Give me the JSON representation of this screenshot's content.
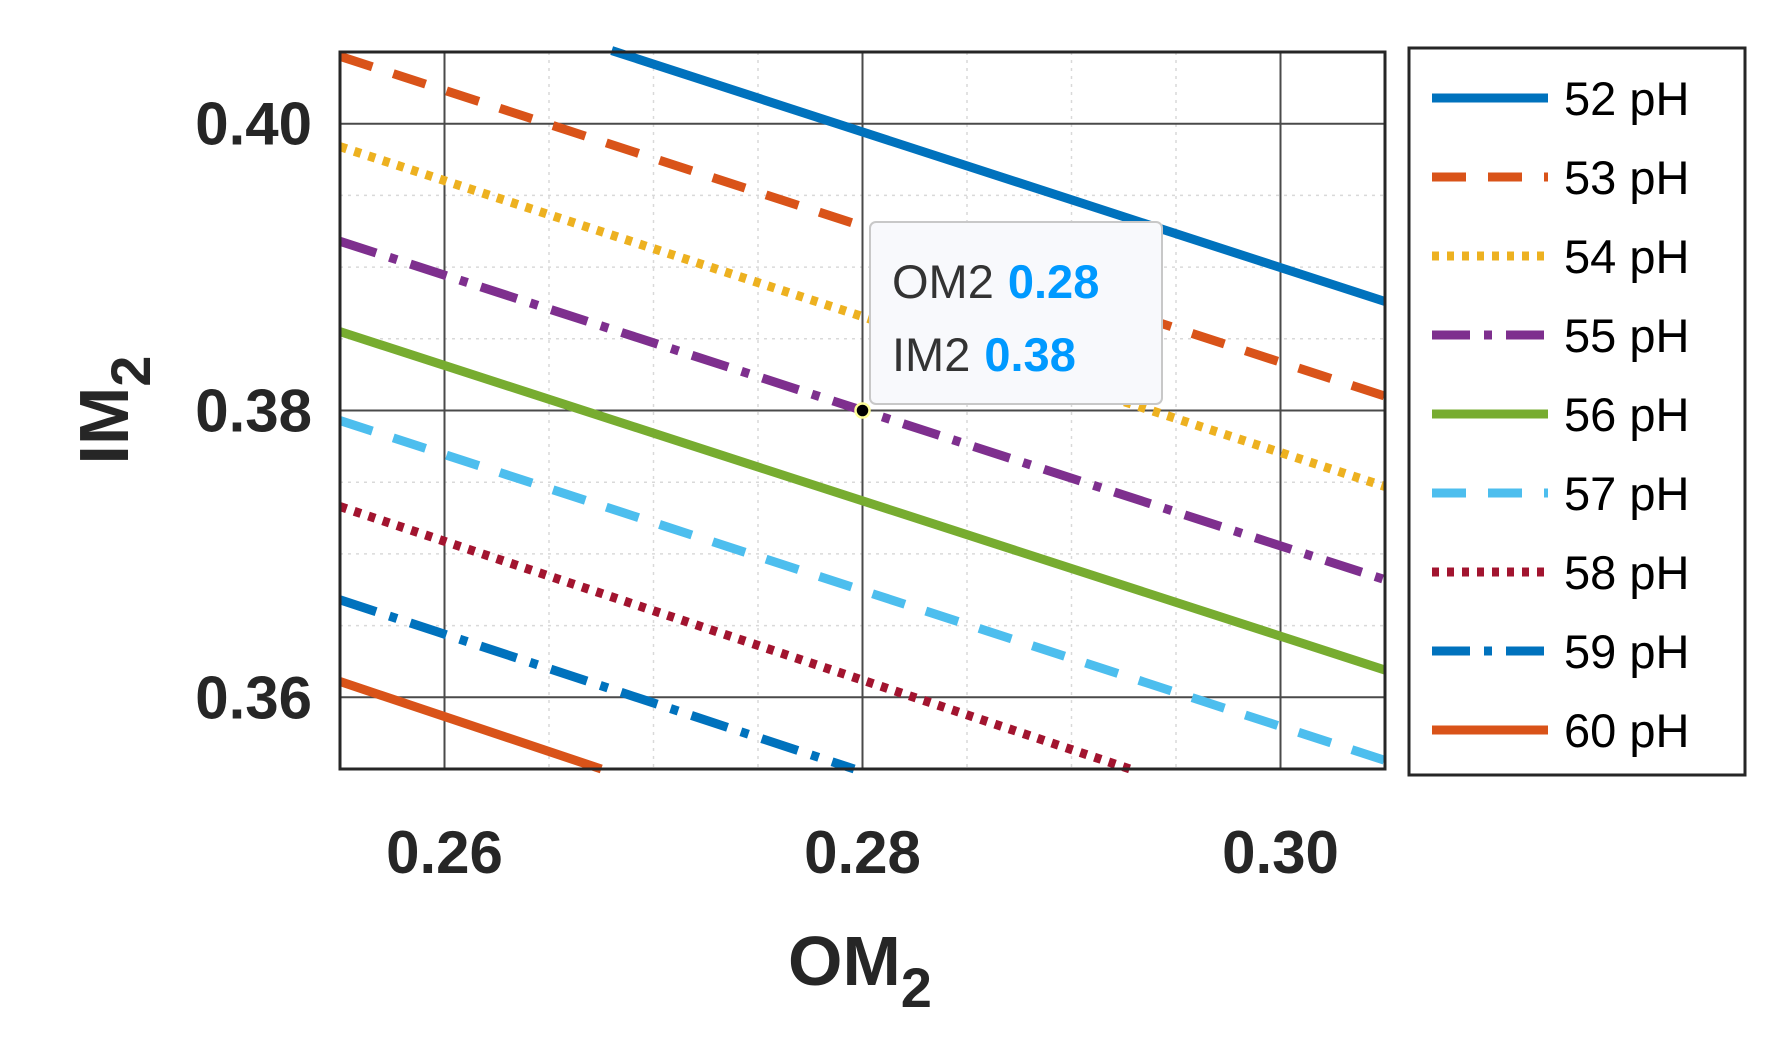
{
  "chart_data": {
    "type": "line",
    "xlabel": "OM",
    "xlabel_sub": "2",
    "ylabel": "IM",
    "ylabel_sub": "2",
    "xlim": [
      0.255,
      0.305
    ],
    "ylim": [
      0.355,
      0.405
    ],
    "xticks": [
      0.26,
      0.28,
      0.3
    ],
    "xtick_labels": [
      "0.26",
      "0.28",
      "0.30"
    ],
    "yticks": [
      0.36,
      0.38,
      0.4
    ],
    "ytick_labels": [
      "0.36",
      "0.38",
      "0.40"
    ],
    "grid": true,
    "minor_grid": true,
    "legend_position": "outside-right",
    "series": [
      {
        "name": "52 pH",
        "color": "#0072BD",
        "style": "solid",
        "x": [
          0.268,
          0.305
        ],
        "y": [
          0.4051,
          0.3876
        ]
      },
      {
        "name": "53 pH",
        "color": "#D95319",
        "style": "dashed",
        "x": [
          0.255,
          0.305
        ],
        "y": [
          0.4047,
          0.381
        ]
      },
      {
        "name": "54 pH",
        "color": "#EDB120",
        "style": "dotted",
        "x": [
          0.255,
          0.305
        ],
        "y": [
          0.3984,
          0.3747
        ]
      },
      {
        "name": "55 pH",
        "color": "#7E2F8E",
        "style": "dashdot",
        "x": [
          0.255,
          0.305
        ],
        "y": [
          0.3918,
          0.3682
        ]
      },
      {
        "name": "56 pH",
        "color": "#77AC30",
        "style": "solid",
        "x": [
          0.255,
          0.305
        ],
        "y": [
          0.3855,
          0.3619
        ]
      },
      {
        "name": "57 pH",
        "color": "#4DBEEE",
        "style": "dashed",
        "x": [
          0.255,
          0.305
        ],
        "y": [
          0.3793,
          0.3556
        ]
      },
      {
        "name": "58 pH",
        "color": "#A2142F",
        "style": "dotted",
        "x": [
          0.255,
          0.2928
        ],
        "y": [
          0.3733,
          0.355
        ]
      },
      {
        "name": "59 pH",
        "color": "#0072BD",
        "style": "dashdot",
        "x": [
          0.255,
          0.2796
        ],
        "y": [
          0.3668,
          0.355
        ]
      },
      {
        "name": "60 pH",
        "color": "#D95319",
        "style": "solid",
        "x": [
          0.255,
          0.2675
        ],
        "y": [
          0.3611,
          0.355
        ]
      }
    ],
    "datatip": {
      "x": 0.28,
      "y": 0.38,
      "x_key": "OM2",
      "x_value": "0.28",
      "y_key": "IM2",
      "y_value": "0.38",
      "value_color": "#0099FF"
    }
  }
}
